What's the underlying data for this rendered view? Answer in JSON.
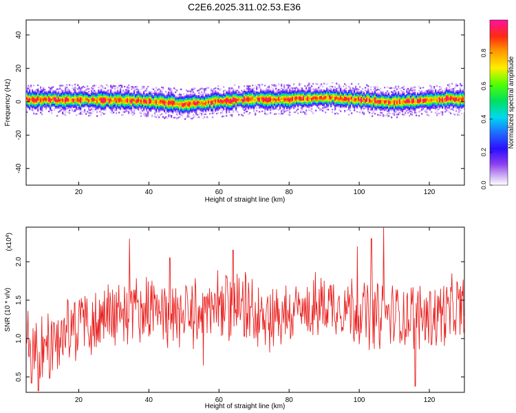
{
  "title": "C2E6.2025.311.02.53.E36",
  "chart_data": [
    {
      "type": "heatmap",
      "xlabel": "Height of straight line (km)",
      "ylabel": "Frequency (Hz)",
      "xlim": [
        5,
        130
      ],
      "ylim": [
        -50,
        49
      ],
      "xticks": [
        20,
        40,
        60,
        80,
        100,
        120
      ],
      "yticks": [
        40,
        20,
        0,
        -20,
        -40
      ],
      "colorbar": {
        "label": "Normalized spectral amplitude",
        "range": [
          0,
          1
        ],
        "ticks": [
          0.0,
          0.2,
          0.4,
          0.6,
          0.8
        ]
      },
      "ridge": {
        "x": [
          5,
          10,
          15,
          20,
          25,
          30,
          35,
          40,
          45,
          50,
          55,
          60,
          65,
          70,
          75,
          80,
          85,
          90,
          95,
          100,
          105,
          110,
          115,
          120,
          125,
          130
        ],
        "freq": [
          1.5,
          1.5,
          1.0,
          1.5,
          1.0,
          1.0,
          1.0,
          0.5,
          -0.5,
          -1.5,
          -0.5,
          0.5,
          1.0,
          1.5,
          1.5,
          1.5,
          2.0,
          2.5,
          2.0,
          1.5,
          0.5,
          0.0,
          0.5,
          1.0,
          2.0,
          1.5
        ]
      }
    },
    {
      "type": "line",
      "xlabel": "Height of straight line (km)",
      "ylabel": "SNR (10 * v/v)",
      "multiplier_label": "(x10",
      "multiplier_exp": "4",
      "multiplier_close": ")",
      "xlim": [
        5,
        130
      ],
      "ylim": [
        0.3,
        2.45
      ],
      "xticks": [
        20,
        40,
        60,
        80,
        100,
        120
      ],
      "yticks": [
        0.5,
        1.0,
        1.5,
        2.0
      ],
      "series": [
        {
          "color": "#e8201e",
          "x": [
            5,
            10,
            15,
            20,
            25,
            30,
            35,
            40,
            45,
            50,
            55,
            60,
            65,
            70,
            75,
            80,
            85,
            90,
            95,
            100,
            105,
            110,
            115,
            120,
            125,
            130
          ],
          "values": [
            1.1,
            0.8,
            1.05,
            1.2,
            1.25,
            1.35,
            1.4,
            1.35,
            1.3,
            1.3,
            1.35,
            1.4,
            1.4,
            1.35,
            1.3,
            1.3,
            1.35,
            1.45,
            1.45,
            1.35,
            1.3,
            1.3,
            1.3,
            1.3,
            1.35,
            1.4
          ],
          "peaks": [
            [
              34.5,
              2.3
            ],
            [
              107,
              2.45
            ],
            [
              103.5,
              2.3
            ],
            [
              99.5,
              2.2
            ],
            [
              64,
              2.15
            ],
            [
              116,
              0.38
            ],
            [
              8.5,
              0.32
            ],
            [
              6.5,
              0.42
            ],
            [
              55.5,
              0.65
            ],
            [
              46,
              2.05
            ]
          ]
        }
      ]
    }
  ]
}
